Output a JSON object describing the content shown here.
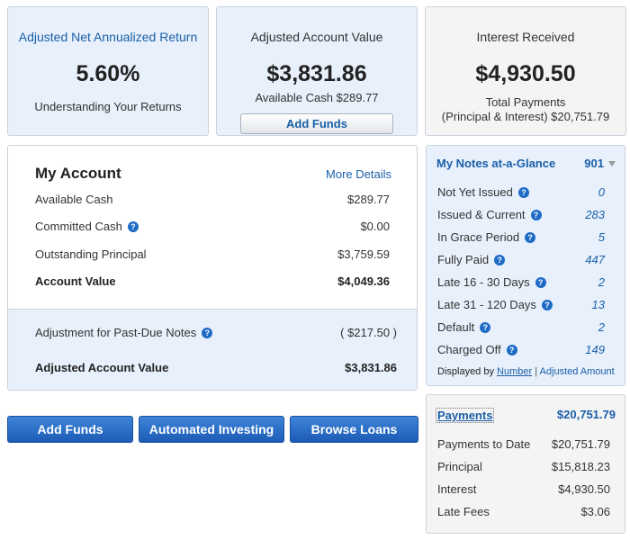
{
  "return_card": {
    "title": "Adjusted Net Annualized Return",
    "value": "5.60%",
    "link": "Understanding Your Returns"
  },
  "value_card": {
    "title": "Adjusted Account Value",
    "value": "$3,831.86",
    "available_cash": "Available Cash $289.77",
    "button": "Add Funds"
  },
  "interest_card": {
    "title": "Interest Received",
    "value": "$4,930.50",
    "line1": "Total Payments",
    "line2": "(Principal & Interest) $20,751.79"
  },
  "my_account": {
    "title": "My Account",
    "more_details": "More Details",
    "rows": [
      {
        "label": "Available Cash",
        "value": "$289.77"
      },
      {
        "label": "Committed Cash",
        "value": "$0.00"
      },
      {
        "label": "Outstanding Principal",
        "value": "$3,759.59"
      },
      {
        "label": "Account Value",
        "value": "$4,049.36"
      }
    ],
    "adjustment": {
      "label": "Adjustment for Past-Due Notes",
      "value": "( $217.50 )"
    },
    "adjusted": {
      "label": "Adjusted Account Value",
      "value": "$3,831.86"
    }
  },
  "buttons": {
    "add_funds": "Add Funds",
    "automated_investing": "Automated Investing",
    "browse_loans": "Browse Loans"
  },
  "notes": {
    "title": "My Notes at-a-Glance",
    "total": "901",
    "rows": [
      {
        "label": "Not Yet Issued",
        "value": "0"
      },
      {
        "label": "Issued & Current",
        "value": "283"
      },
      {
        "label": "In Grace Period",
        "value": "5"
      },
      {
        "label": "Fully Paid",
        "value": "447"
      },
      {
        "label": "Late 16 - 30 Days",
        "value": "2"
      },
      {
        "label": "Late 31 - 120 Days",
        "value": "13"
      },
      {
        "label": "Default",
        "value": "2"
      },
      {
        "label": "Charged Off",
        "value": "149"
      }
    ],
    "displayed_by": "Displayed by",
    "number": "Number",
    "separator": "|",
    "adjusted_amount": "Adjusted Amount"
  },
  "payments": {
    "title": "Payments",
    "total": "$20,751.79",
    "rows": [
      {
        "label": "Payments to Date",
        "value": "$20,751.79"
      },
      {
        "label": "Principal",
        "value": "$15,818.23"
      },
      {
        "label": "Interest",
        "value": "$4,930.50"
      },
      {
        "label": "Late Fees",
        "value": "$3.06"
      }
    ]
  },
  "colors": {
    "link": "#1a5fa8",
    "panel_blue": "#e8f0fb",
    "button_blue": "#1d5bb5"
  }
}
